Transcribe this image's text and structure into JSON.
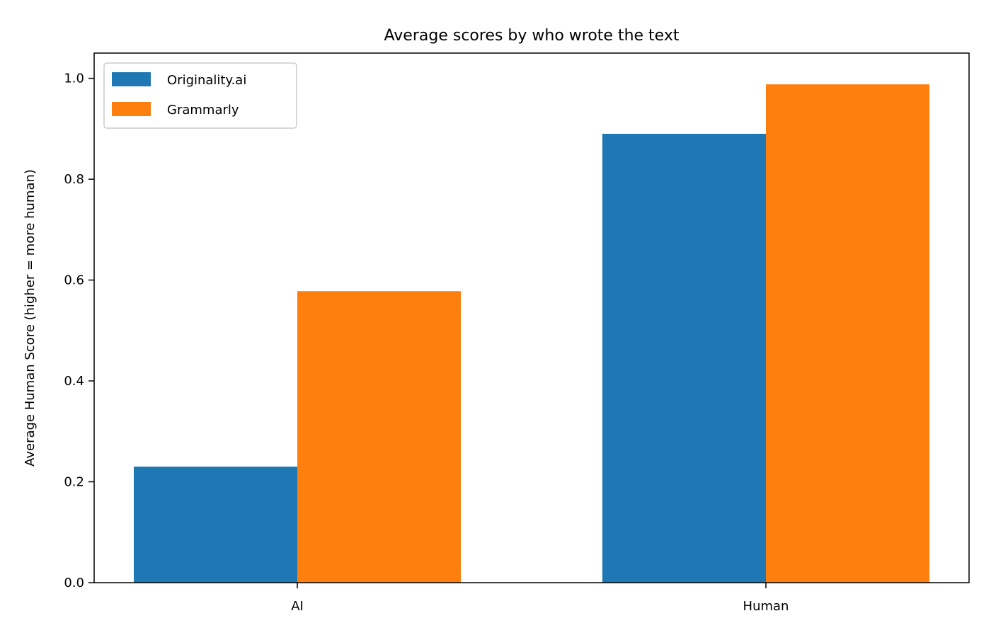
{
  "chart_data": {
    "type": "bar",
    "title": "Average scores by who wrote the text",
    "xlabel": "",
    "ylabel": "Average Human Score (higher = more human)",
    "categories": [
      "AI",
      "Human"
    ],
    "series": [
      {
        "name": "Originality.ai",
        "values": [
          0.23,
          0.89
        ],
        "color": "#1f77b4"
      },
      {
        "name": "Grammarly",
        "values": [
          0.578,
          0.988
        ],
        "color": "#ff7f0e"
      }
    ],
    "ylim": [
      0,
      1.05
    ],
    "yticks": [
      "0.0",
      "0.2",
      "0.4",
      "0.6",
      "0.8",
      "1.0"
    ],
    "grid": false,
    "legend_position": "top-left"
  }
}
